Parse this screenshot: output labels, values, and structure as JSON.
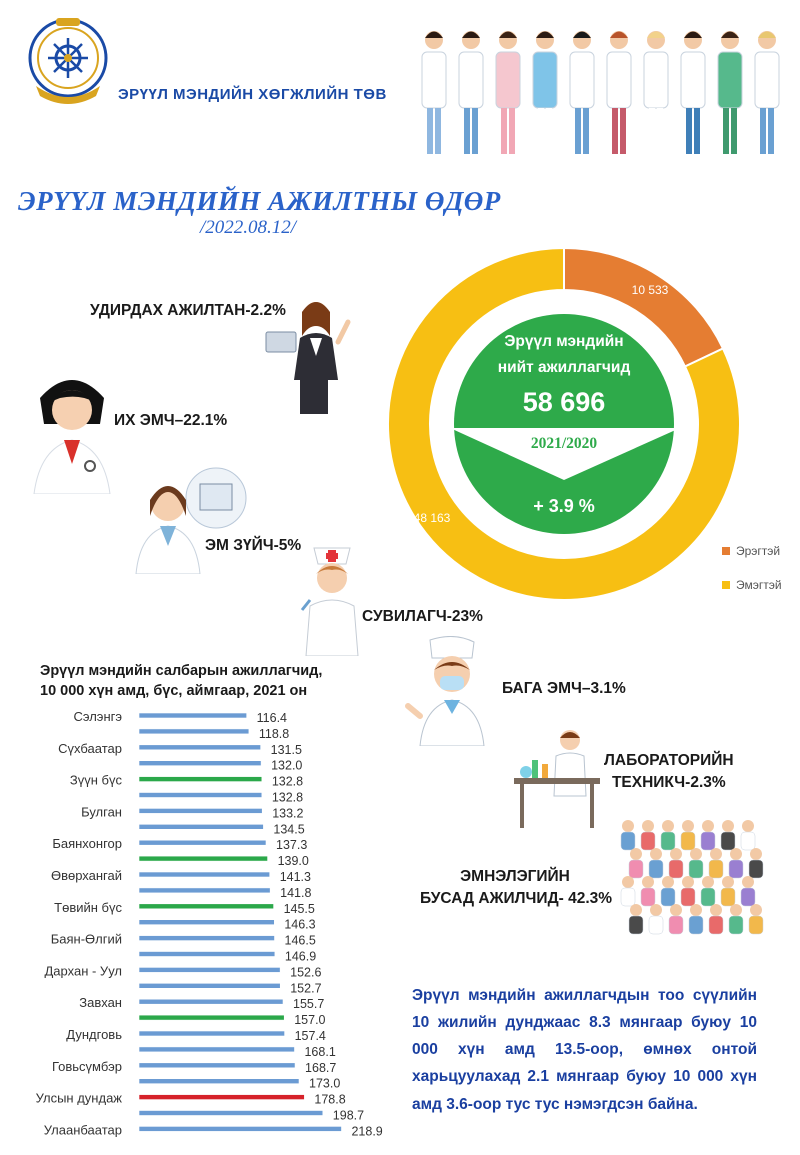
{
  "header": {
    "org_name": "ЭРҮҮЛ МЭНДИЙН ХӨГЖЛИЙН ТӨВ",
    "title": "ЭРҮҮЛ МЭНДИЙН АЖИЛТНЫ ӨДӨР",
    "date": "/2022.08.12/"
  },
  "occupations": [
    {
      "label": "УДИРДАХ АЖИЛТАН-2.2%"
    },
    {
      "label": "ИХ ЭМЧ–22.1%"
    },
    {
      "label": "ЭМ ЗҮЙЧ-5%"
    },
    {
      "label": "СУВИЛАГЧ-23%"
    },
    {
      "label": "БАГА ЭМЧ–3.1%"
    },
    {
      "label_line1": "ЛАБОРАТОРИЙН",
      "label_line2": "ТЕХНИКЧ-2.3%"
    },
    {
      "label_line1": "ЭМНЭЛЭГИЙН",
      "label_line2": "БУСАД АЖИЛЧИД- 42.3%"
    }
  ],
  "colors": {
    "male": "#e57d32",
    "female": "#f7bf13",
    "center": "#2eaa4a",
    "bar_blue": "#6b9bd3",
    "bar_green": "#2ba84a",
    "bar_red": "#d6222a",
    "title_blue": "#2a62c9"
  },
  "chart_data": [
    {
      "type": "pie",
      "variant": "donut",
      "labels": [
        "Эрэгтэй",
        "Эмэгтэй"
      ],
      "values": [
        10533,
        48163
      ],
      "value_labels": [
        "10 533",
        "48 163"
      ],
      "center": {
        "line1": "Эрүүл мэндийн",
        "line2": "нийт ажиллагчид",
        "total": "58 696",
        "compare_label": "2021/2020",
        "change": "+ 3.9 %"
      },
      "legend_position": "right-bottom"
    },
    {
      "type": "bar",
      "orientation": "horizontal",
      "title_line1": "Эрүүл мэндийн салбарын ажиллагчид,",
      "title_line2": "10 000 хүн амд, бүс, аймгаар, 2021 он",
      "values": [
        116.4,
        118.8,
        131.5,
        132.0,
        132.8,
        132.8,
        133.2,
        134.5,
        137.3,
        139.0,
        141.3,
        141.8,
        145.5,
        146.3,
        146.5,
        146.9,
        152.6,
        152.7,
        155.7,
        157.0,
        157.4,
        168.1,
        168.7,
        173.0,
        178.8,
        198.7,
        218.9
      ],
      "value_labels": [
        "116.4",
        "118.8",
        "131.5",
        "132.0",
        "132.8",
        "132.8",
        "133.2",
        "134.5",
        "137.3",
        "139.0",
        "141.3",
        "141.8",
        "145.5",
        "146.3",
        "146.5",
        "146.9",
        "152.6",
        "152.7",
        "155.7",
        "157.0",
        "157.4",
        "168.1",
        "168.7",
        "173.0",
        "178.8",
        "198.7",
        "218.9"
      ],
      "categories_shown": {
        "0": "Сэлэнгэ",
        "2": "Сүхбаатар",
        "4": "Зүүн бүс",
        "6": "Булган",
        "8": "Баянхонгор",
        "10": "Өвөрхангай",
        "12": "Төвийн бүс",
        "14": "Баян-Өлгий",
        "16": "Дархан - Уул",
        "18": "Завхан",
        "20": "Дундговь",
        "22": "Говьсүмбэр",
        "24": "Улсын дундаж",
        "26": "Улаанбаатар"
      },
      "bar_kind": [
        "blue",
        "blue",
        "blue",
        "blue",
        "green",
        "blue",
        "blue",
        "blue",
        "blue",
        "green",
        "blue",
        "blue",
        "green",
        "blue",
        "blue",
        "blue",
        "blue",
        "blue",
        "blue",
        "green",
        "blue",
        "blue",
        "blue",
        "blue",
        "red",
        "blue",
        "blue"
      ],
      "xlim": [
        0,
        220
      ]
    }
  ],
  "summary": "Эрүүл мэндийн ажиллагчдын тоо сүүлийн 10 жилийн дунджаас 8.3 мянгаар буюу 10 000 хүн амд 13.5-оор, өмнөх онтой харьцуулахад 2.1 мянгаар буюу 10 000 хүн амд 3.6-оор тус тус нэмэгдсэн байна."
}
